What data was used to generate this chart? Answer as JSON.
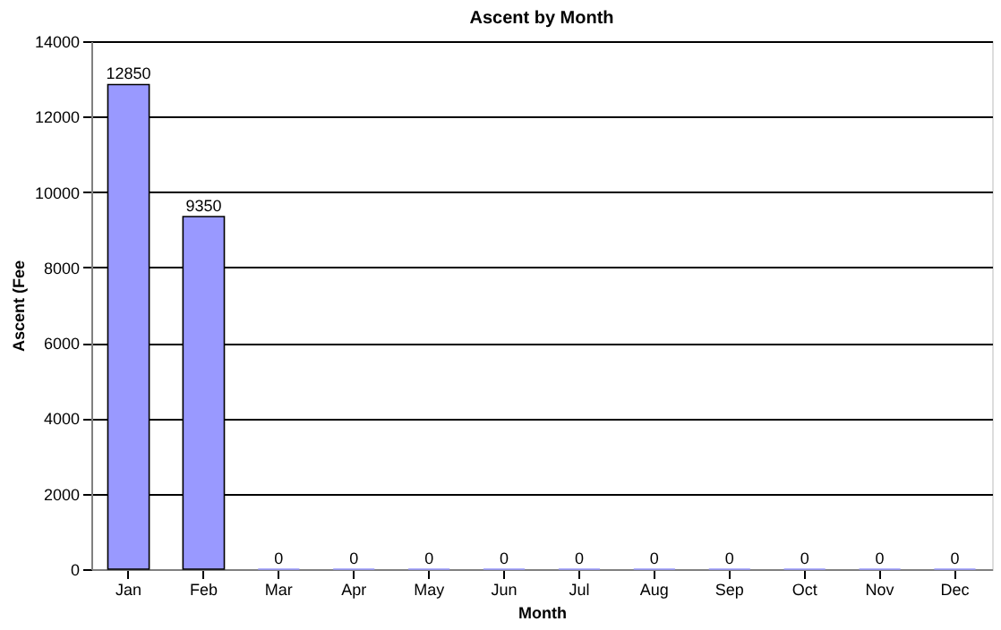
{
  "chart_data": {
    "type": "bar",
    "title": "Ascent by Month",
    "xlabel": "Month",
    "ylabel": "Ascent (Fee",
    "categories": [
      "Jan",
      "Feb",
      "Mar",
      "Apr",
      "May",
      "Jun",
      "Jul",
      "Aug",
      "Sep",
      "Oct",
      "Nov",
      "Dec"
    ],
    "values": [
      12850,
      9350,
      0,
      0,
      0,
      0,
      0,
      0,
      0,
      0,
      0,
      0
    ],
    "color": "#9999ff",
    "ylim": [
      0,
      14000
    ],
    "yticks": [
      0,
      2000,
      4000,
      6000,
      8000,
      10000,
      12000,
      14000
    ],
    "grid": "y",
    "data_labels": true
  }
}
